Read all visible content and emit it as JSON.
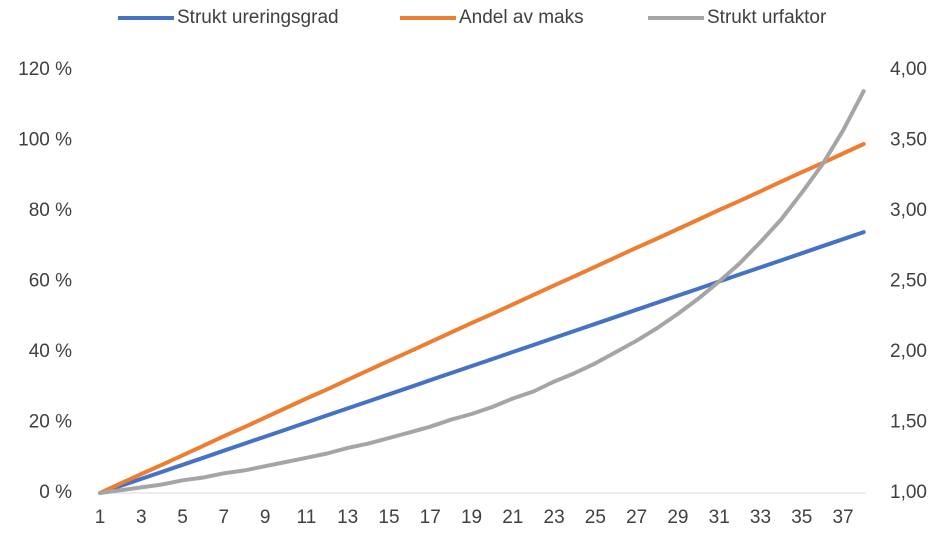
{
  "chart_data": {
    "type": "line",
    "categories": [
      1,
      null,
      3,
      null,
      5,
      null,
      7,
      null,
      9,
      null,
      11,
      null,
      13,
      null,
      15,
      null,
      17,
      null,
      19,
      null,
      21,
      null,
      23,
      null,
      25,
      null,
      27,
      null,
      29,
      null,
      31,
      null,
      33,
      null,
      35,
      null,
      37,
      null
    ],
    "series": [
      {
        "name": "Strukt ureringsgrad",
        "color": "#4472c4",
        "values": [
          0,
          2,
          4,
          6,
          8,
          10,
          12,
          14,
          16,
          18,
          20,
          22,
          24,
          26,
          28,
          30,
          32,
          34,
          36,
          38,
          40,
          42,
          44,
          46,
          48,
          50,
          52,
          54,
          56,
          58,
          60,
          62,
          64,
          66,
          68,
          70,
          72,
          74
        ]
      },
      {
        "name": "Andel av maks",
        "color": "#ed7d31",
        "values": [
          0,
          2.7,
          5.4,
          8.0,
          10.7,
          13.4,
          16.1,
          18.7,
          21.4,
          24.1,
          26.8,
          29.4,
          32.1,
          34.8,
          37.5,
          40.1,
          42.8,
          45.5,
          48.2,
          50.8,
          53.5,
          56.2,
          58.9,
          61.5,
          64.2,
          66.9,
          69.6,
          72.2,
          74.9,
          77.6,
          80.3,
          82.9,
          85.6,
          88.3,
          91.0,
          93.6,
          96.3,
          99.0
        ]
      },
      {
        "name": "Strukt urfaktor",
        "color": "#a5a5a5",
        "axis": "y2",
        "values": [
          1.0,
          1.02,
          1.04,
          1.06,
          1.09,
          1.11,
          1.14,
          1.16,
          1.19,
          1.22,
          1.25,
          1.28,
          1.32,
          1.35,
          1.39,
          1.43,
          1.47,
          1.52,
          1.56,
          1.61,
          1.67,
          1.72,
          1.79,
          1.85,
          1.92,
          2.0,
          2.08,
          2.17,
          2.27,
          2.38,
          2.5,
          2.63,
          2.78,
          2.94,
          3.13,
          3.33,
          3.57,
          3.85
        ]
      }
    ],
    "ylim": [
      0,
      120
    ],
    "yticks": [
      {
        "value": 0,
        "label": "0 %"
      },
      {
        "value": 20,
        "label": "20 %"
      },
      {
        "value": 40,
        "label": "40 %"
      },
      {
        "value": 60,
        "label": "60 %"
      },
      {
        "value": 80,
        "label": "80 %"
      },
      {
        "value": 100,
        "label": "100 %"
      },
      {
        "value": 120,
        "label": "120 %"
      }
    ],
    "y2lim": [
      1,
      4
    ],
    "y2ticks": [
      {
        "value": 1,
        "label": "1,00"
      },
      {
        "value": 1.5,
        "label": "1,50"
      },
      {
        "value": 2,
        "label": "2,00"
      },
      {
        "value": 2.5,
        "label": "2,50"
      },
      {
        "value": 3,
        "label": "3,00"
      },
      {
        "value": 3.5,
        "label": "3,50"
      },
      {
        "value": 4,
        "label": "4,00"
      }
    ],
    "legend": "top"
  }
}
